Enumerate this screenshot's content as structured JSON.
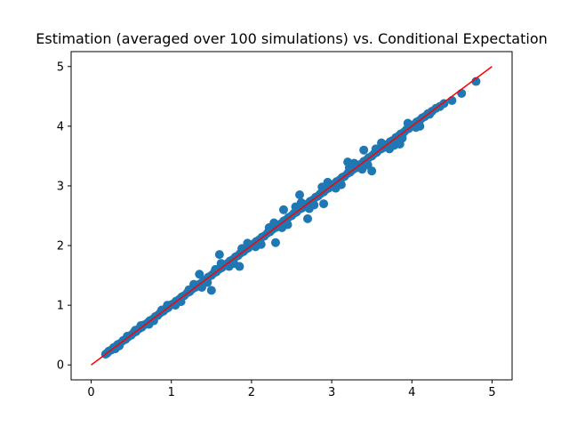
{
  "chart_data": {
    "type": "scatter",
    "title": "Estimation (averaged over 100 simulations) vs. Conditional Expectation",
    "xlabel": "",
    "ylabel": "",
    "xlim": [
      -0.25,
      5.25
    ],
    "ylim": [
      -0.25,
      5.25
    ],
    "xticks": [
      0,
      1,
      2,
      3,
      4,
      5
    ],
    "yticks": [
      0,
      1,
      2,
      3,
      4,
      5
    ],
    "grid": false,
    "legend": "none",
    "colors": {
      "scatter": "#1f77b4",
      "reference": "#ff0000",
      "axes": "#000000"
    },
    "series": [
      {
        "kind": "scatter",
        "x": [
          0.18,
          0.2,
          0.22,
          0.25,
          0.28,
          0.3,
          0.33,
          0.36,
          0.4,
          0.43,
          0.46,
          0.5,
          0.53,
          0.56,
          0.6,
          0.63,
          0.66,
          0.7,
          0.73,
          0.76,
          0.8,
          0.83,
          0.86,
          0.9,
          0.93,
          0.96,
          1.0,
          1.03,
          1.06,
          1.1,
          1.13,
          1.16,
          1.2,
          1.23,
          1.26,
          1.3,
          1.33,
          1.36,
          1.4,
          1.43,
          1.46,
          1.5,
          1.53,
          1.56,
          1.6,
          1.63,
          1.66,
          1.7,
          1.73,
          1.76,
          1.8,
          1.83,
          1.86,
          1.9,
          1.93,
          1.96,
          2.0,
          2.03,
          2.06,
          2.1,
          2.13,
          2.16,
          2.2,
          2.23,
          2.26,
          2.3,
          2.33,
          2.36,
          2.4,
          2.43,
          2.46,
          2.5,
          2.53,
          2.56,
          2.6,
          2.63,
          2.66,
          2.7,
          2.73,
          2.76,
          2.8,
          2.83,
          2.86,
          2.9,
          2.93,
          2.96,
          3.0,
          3.03,
          3.06,
          3.1,
          3.13,
          3.16,
          3.2,
          3.23,
          3.26,
          3.3,
          3.33,
          3.36,
          3.4,
          3.43,
          3.46,
          3.5,
          3.53,
          3.56,
          3.6,
          3.63,
          3.66,
          3.7,
          3.73,
          3.76,
          3.8,
          3.83,
          3.86,
          3.9,
          3.93,
          3.96,
          4.0,
          4.03,
          4.06,
          4.1,
          4.13,
          4.16,
          4.2,
          4.25,
          4.3,
          4.35,
          4.4,
          4.5,
          4.62,
          4.8,
          0.3,
          0.45,
          0.62,
          0.78,
          0.95,
          1.12,
          1.28,
          1.45,
          1.62,
          1.78,
          1.95,
          2.12,
          2.28,
          2.45,
          2.62,
          2.78,
          2.95,
          3.12,
          3.28,
          3.45,
          3.62,
          3.78,
          3.95,
          4.1,
          0.35,
          0.55,
          0.72,
          0.88,
          1.05,
          1.22,
          1.38,
          1.55,
          1.72,
          1.88,
          2.05,
          2.22,
          2.38,
          2.55,
          2.72,
          2.88,
          3.05,
          3.22,
          3.38,
          3.55,
          3.72,
          3.88,
          4.05,
          4.22,
          1.5,
          1.6,
          2.3,
          2.6,
          2.7,
          3.2,
          3.5,
          1.35,
          1.85,
          2.4,
          2.9,
          3.4,
          3.85
        ],
        "y": [
          0.18,
          0.2,
          0.23,
          0.25,
          0.29,
          0.3,
          0.34,
          0.36,
          0.41,
          0.43,
          0.47,
          0.5,
          0.54,
          0.56,
          0.61,
          0.63,
          0.67,
          0.7,
          0.74,
          0.76,
          0.81,
          0.83,
          0.87,
          0.9,
          0.94,
          0.96,
          1.01,
          1.03,
          1.07,
          1.1,
          1.14,
          1.16,
          1.21,
          1.23,
          1.27,
          1.3,
          1.34,
          1.36,
          1.41,
          1.43,
          1.47,
          1.5,
          1.54,
          1.56,
          1.61,
          1.63,
          1.67,
          1.7,
          1.74,
          1.76,
          1.81,
          1.83,
          1.87,
          1.9,
          1.94,
          1.96,
          2.01,
          2.03,
          2.07,
          2.1,
          2.14,
          2.16,
          2.21,
          2.23,
          2.27,
          2.3,
          2.34,
          2.36,
          2.41,
          2.43,
          2.47,
          2.5,
          2.54,
          2.56,
          2.61,
          2.63,
          2.67,
          2.7,
          2.74,
          2.76,
          2.81,
          2.83,
          2.87,
          2.9,
          2.94,
          2.96,
          3.01,
          3.03,
          3.07,
          3.1,
          3.14,
          3.16,
          3.21,
          3.23,
          3.27,
          3.3,
          3.34,
          3.36,
          3.41,
          3.43,
          3.47,
          3.5,
          3.54,
          3.56,
          3.61,
          3.63,
          3.67,
          3.7,
          3.74,
          3.76,
          3.81,
          3.83,
          3.87,
          3.9,
          3.94,
          3.96,
          4.01,
          4.03,
          4.07,
          4.1,
          4.14,
          4.16,
          4.21,
          4.25,
          4.3,
          4.33,
          4.38,
          4.43,
          4.55,
          4.75,
          0.27,
          0.48,
          0.66,
          0.74,
          1.0,
          1.06,
          1.35,
          1.38,
          1.7,
          1.7,
          2.04,
          2.02,
          2.38,
          2.35,
          2.72,
          2.68,
          3.06,
          3.02,
          3.38,
          3.35,
          3.72,
          3.68,
          4.05,
          4.0,
          0.32,
          0.58,
          0.68,
          0.92,
          1.0,
          1.26,
          1.3,
          1.6,
          1.65,
          1.95,
          1.98,
          2.3,
          2.3,
          2.65,
          2.62,
          2.98,
          2.96,
          3.3,
          3.28,
          3.62,
          3.62,
          3.8,
          3.98,
          4.2,
          1.25,
          1.85,
          2.05,
          2.85,
          2.45,
          3.4,
          3.25,
          1.52,
          1.65,
          2.6,
          2.7,
          3.6,
          3.7
        ]
      },
      {
        "kind": "line",
        "x": [
          0,
          5
        ],
        "y": [
          0,
          5
        ]
      }
    ]
  }
}
